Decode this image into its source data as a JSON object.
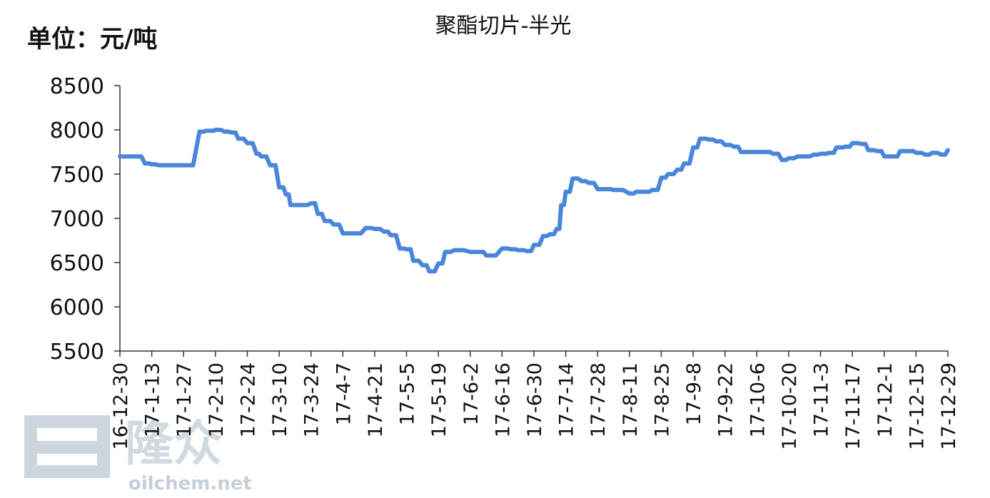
{
  "chart_data": {
    "type": "line",
    "title": "聚酯切片-半光",
    "unit_label": "单位：元/吨",
    "xlabel": "",
    "ylabel": "",
    "ylim": [
      5500,
      8500
    ],
    "yticks": [
      5500,
      6000,
      6500,
      7000,
      7500,
      8000,
      8500
    ],
    "x_tick_labels": [
      "16-12-30",
      "17-1-13",
      "17-1-27",
      "17-2-10",
      "17-2-24",
      "17-3-10",
      "17-3-24",
      "17-4-7",
      "17-4-21",
      "17-5-5",
      "17-5-19",
      "17-6-2",
      "17-6-16",
      "17-6-30",
      "17-7-14",
      "17-7-28",
      "17-8-11",
      "17-8-25",
      "17-9-8",
      "17-9-22",
      "17-10-6",
      "17-10-20",
      "17-11-3",
      "17-11-17",
      "17-12-1",
      "17-12-15",
      "17-12-29"
    ],
    "grid": false,
    "legend": "none",
    "line_color": "#4a86d9",
    "series": [
      {
        "x": [
          "16-12-30",
          "17-1-3",
          "17-1-6",
          "17-1-10",
          "17-1-13",
          "17-1-16",
          "17-1-20",
          "17-1-24",
          "17-1-27",
          "17-2-3",
          "17-2-6",
          "17-2-8",
          "17-2-10",
          "17-2-14",
          "17-2-17",
          "17-2-20",
          "17-2-24",
          "17-2-28",
          "17-3-2",
          "17-3-6",
          "17-3-10",
          "17-3-13",
          "17-3-15",
          "17-3-20",
          "17-3-24",
          "17-3-27",
          "17-3-30",
          "17-4-3",
          "17-4-7",
          "17-4-12",
          "17-4-17",
          "17-4-21",
          "17-4-25",
          "17-4-28",
          "17-5-2",
          "17-5-5",
          "17-5-8",
          "17-5-12",
          "17-5-15",
          "17-5-19",
          "17-5-22",
          "17-5-26",
          "17-6-2",
          "17-6-6",
          "17-6-9",
          "17-6-16",
          "17-6-20",
          "17-6-23",
          "17-6-27",
          "17-6-30",
          "17-7-4",
          "17-7-7",
          "17-7-10",
          "17-7-12",
          "17-7-14",
          "17-7-17",
          "17-7-21",
          "17-7-24",
          "17-7-28",
          "17-8-1",
          "17-8-4",
          "17-8-11",
          "17-8-14",
          "17-8-18",
          "17-8-21",
          "17-8-25",
          "17-8-28",
          "17-9-1",
          "17-9-4",
          "17-9-8",
          "17-9-11",
          "17-9-15",
          "17-9-18",
          "17-9-22",
          "17-9-26",
          "17-9-29",
          "17-10-6",
          "17-10-10",
          "17-10-13",
          "17-10-17",
          "17-10-20",
          "17-10-24",
          "17-10-27",
          "17-10-31",
          "17-11-3",
          "17-11-7",
          "17-11-10",
          "17-11-14",
          "17-11-17",
          "17-11-21",
          "17-11-24",
          "17-11-28",
          "17-12-1",
          "17-12-5",
          "17-12-8",
          "17-12-12",
          "17-12-15",
          "17-12-19",
          "17-12-22",
          "17-12-26",
          "17-12-29"
        ],
        "values": [
          7700,
          7700,
          7700,
          7620,
          7610,
          7600,
          7600,
          7600,
          7600,
          7980,
          7990,
          7990,
          8000,
          7980,
          7970,
          7900,
          7850,
          7730,
          7700,
          7600,
          7350,
          7270,
          7150,
          7150,
          7170,
          7050,
          6970,
          6930,
          6830,
          6830,
          6890,
          6880,
          6850,
          6810,
          6660,
          6650,
          6520,
          6470,
          6400,
          6490,
          6620,
          6640,
          6620,
          6620,
          6580,
          6660,
          6650,
          6640,
          6630,
          6700,
          6800,
          6820,
          6880,
          7150,
          7300,
          7450,
          7420,
          7400,
          7330,
          7330,
          7320,
          7280,
          7300,
          7300,
          7320,
          7460,
          7500,
          7550,
          7620,
          7800,
          7900,
          7890,
          7870,
          7830,
          7810,
          7750,
          7750,
          7750,
          7730,
          7660,
          7680,
          7700,
          7700,
          7720,
          7730,
          7740,
          7800,
          7810,
          7850,
          7840,
          7770,
          7760,
          7700,
          7700,
          7760,
          7760,
          7740,
          7720,
          7740,
          7720,
          7770
        ]
      }
    ]
  },
  "watermark": {
    "brand": "隆众",
    "url": "oilchem.net"
  }
}
